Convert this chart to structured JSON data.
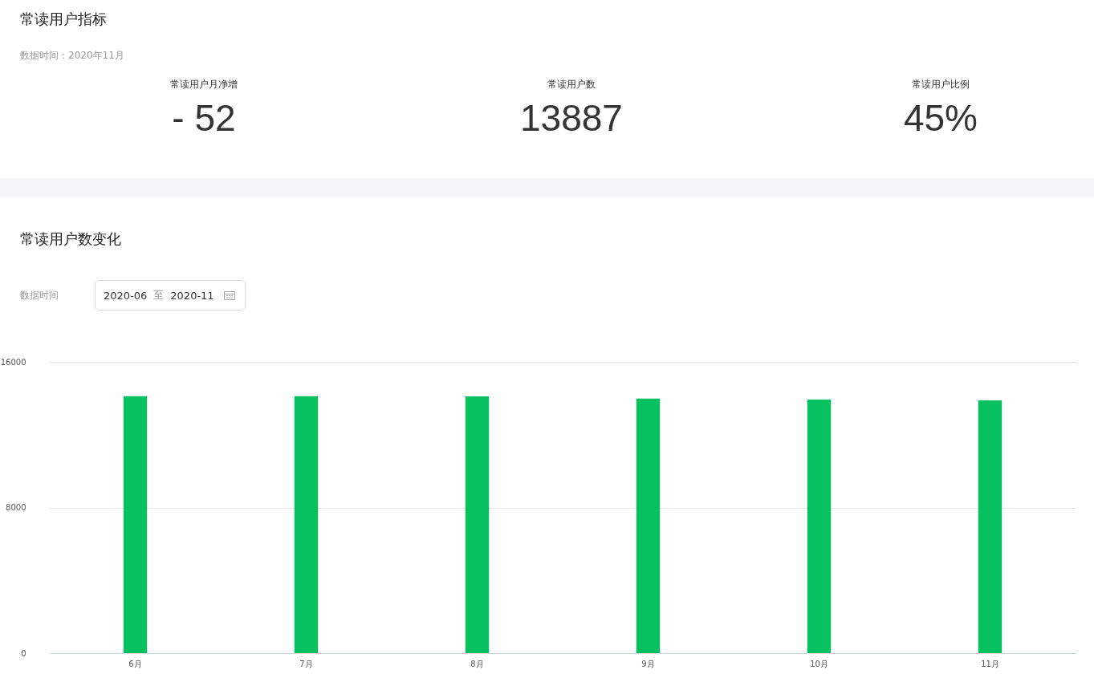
{
  "chart_data": [
    {
      "type": "other",
      "title": "常读用户指标",
      "subtitle": "数据时间：2020年11月",
      "annotations": [
        "常读用户月净增",
        "- 52",
        "常读用户数",
        "13887",
        "常读用户比例",
        "45%"
      ]
    },
    {
      "type": "bar",
      "title": "常读用户数变化",
      "annotations": [
        "数据时间",
        "2020-06",
        "至",
        "2020-11"
      ],
      "categories": [
        "6月",
        "7月",
        "8月",
        "9月",
        "10月",
        "11月"
      ],
      "values": [
        14120,
        14120,
        14100,
        13980,
        13930,
        13887
      ],
      "color": "#07c160",
      "ylim": [
        0,
        16000
      ],
      "yticks": [
        0,
        8000,
        16000
      ],
      "grid": "y"
    }
  ]
}
